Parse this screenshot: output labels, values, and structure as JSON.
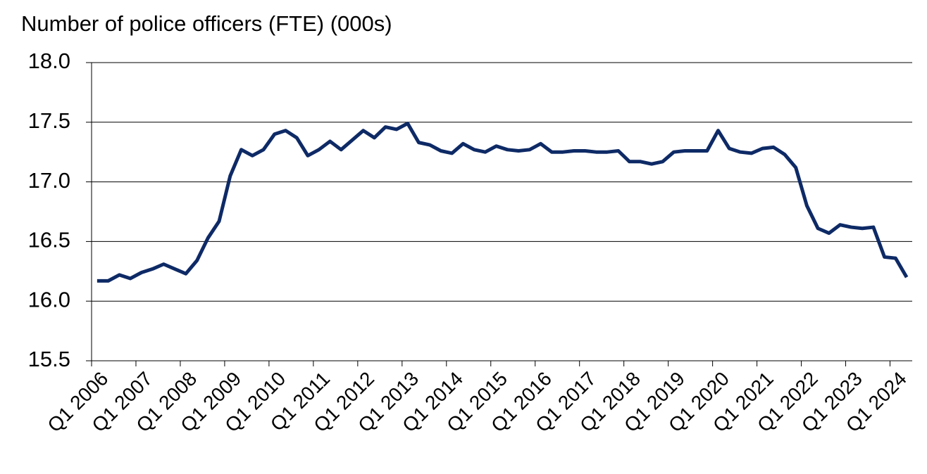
{
  "chart_data": {
    "type": "line",
    "title": "Number of police officers (FTE) (000s)",
    "categories": [
      "Q1 2006",
      null,
      null,
      null,
      "Q1 2007",
      null,
      null,
      null,
      "Q1 2008",
      null,
      null,
      null,
      "Q1 2009",
      null,
      null,
      null,
      "Q1 2010",
      null,
      null,
      null,
      "Q1 2011",
      null,
      null,
      null,
      "Q1 2012",
      null,
      null,
      null,
      "Q1 2013",
      null,
      null,
      null,
      "Q1 2014",
      null,
      null,
      null,
      "Q1 2015",
      null,
      null,
      null,
      "Q1 2016",
      null,
      null,
      null,
      "Q1 2017",
      null,
      null,
      null,
      "Q1 2018",
      null,
      null,
      null,
      "Q1 2019",
      null,
      null,
      null,
      "Q1 2020",
      null,
      null,
      null,
      "Q1 2021",
      null,
      null,
      null,
      "Q1 2022",
      null,
      null,
      null,
      "Q1 2023",
      null,
      null,
      null,
      "Q1 2024",
      null
    ],
    "values": [
      16.17,
      16.17,
      16.22,
      16.19,
      16.24,
      16.27,
      16.31,
      16.27,
      16.23,
      16.34,
      16.53,
      16.67,
      17.05,
      17.27,
      17.22,
      17.27,
      17.4,
      17.43,
      17.37,
      17.22,
      17.27,
      17.34,
      17.27,
      17.35,
      17.43,
      17.37,
      17.46,
      17.44,
      17.49,
      17.33,
      17.31,
      17.26,
      17.24,
      17.32,
      17.27,
      17.25,
      17.3,
      17.27,
      17.26,
      17.27,
      17.32,
      17.25,
      17.25,
      17.26,
      17.26,
      17.25,
      17.25,
      17.26,
      17.17,
      17.17,
      17.15,
      17.17,
      17.25,
      17.26,
      17.26,
      17.26,
      17.43,
      17.28,
      17.25,
      17.24,
      17.28,
      17.29,
      17.23,
      17.12,
      16.8,
      16.61,
      16.57,
      16.64,
      16.62,
      16.61,
      16.62,
      16.37,
      16.36,
      16.2
    ],
    "color": "#0e2a66",
    "ylim": [
      15.5,
      18
    ],
    "yticks": [
      15.5,
      {
        "value": 16,
        "label": "16.0"
      },
      16.5,
      {
        "value": 17,
        "label": "17.0"
      },
      17.5,
      {
        "value": 18,
        "label": "18.0"
      }
    ],
    "grid": true
  }
}
